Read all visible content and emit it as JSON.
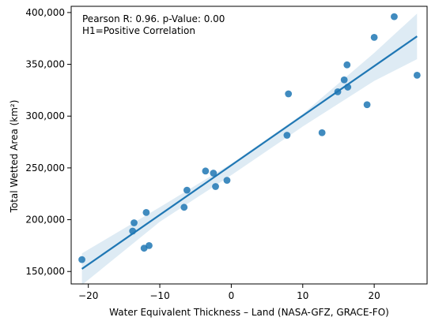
{
  "chart_data": {
    "type": "scatter",
    "xlabel": "Water Equivalent Thickness – Land (NASA-GFZ, GRACE-FO)",
    "ylabel": "Total Wetted Area (km²)",
    "annotation_lines": [
      "Pearson R: 0.96. p-Value: 0.00",
      "H1=Positive Correlation"
    ],
    "xlim": [
      -22.4,
      27.4
    ],
    "ylim": [
      138000,
      406000
    ],
    "x_ticks": [
      -20,
      -10,
      0,
      10,
      20
    ],
    "x_tick_labels": [
      "−20",
      "−10",
      "0",
      "10",
      "20"
    ],
    "y_ticks": [
      150000,
      200000,
      250000,
      300000,
      350000,
      400000
    ],
    "y_tick_labels": [
      "150,000",
      "200,000",
      "250,000",
      "300,000",
      "350,000",
      "400,000"
    ],
    "grid": false,
    "colors": {
      "points": "#1f77b4",
      "line": "#1f77b4",
      "band": "#1f77b4"
    },
    "points": [
      {
        "x": -20.9,
        "y": 161500
      },
      {
        "x": -13.8,
        "y": 189000
      },
      {
        "x": -13.6,
        "y": 197000
      },
      {
        "x": -12.2,
        "y": 172500
      },
      {
        "x": -11.9,
        "y": 207000
      },
      {
        "x": -11.5,
        "y": 175000
      },
      {
        "x": -6.6,
        "y": 212000
      },
      {
        "x": -6.2,
        "y": 228500
      },
      {
        "x": -3.6,
        "y": 247000
      },
      {
        "x": -2.5,
        "y": 245000
      },
      {
        "x": -2.2,
        "y": 232000
      },
      {
        "x": -0.6,
        "y": 238000
      },
      {
        "x": 7.8,
        "y": 281500
      },
      {
        "x": 8.0,
        "y": 321500
      },
      {
        "x": 12.7,
        "y": 284000
      },
      {
        "x": 14.9,
        "y": 323500
      },
      {
        "x": 15.8,
        "y": 335000
      },
      {
        "x": 16.2,
        "y": 349500
      },
      {
        "x": 16.3,
        "y": 328000
      },
      {
        "x": 19.0,
        "y": 311000
      },
      {
        "x": 20.0,
        "y": 376000
      },
      {
        "x": 22.8,
        "y": 396000
      },
      {
        "x": 26.0,
        "y": 339500
      }
    ],
    "regression": {
      "x": [
        -20.9,
        26.0
      ],
      "y": [
        152500,
        377000
      ]
    },
    "confidence_band": [
      {
        "x": -20.9,
        "lower": 137000,
        "upper": 167500
      },
      {
        "x": -10,
        "lower": 198000,
        "upper": 212000
      },
      {
        "x": 0,
        "lower": 243000,
        "upper": 254000
      },
      {
        "x": 10,
        "lower": 290000,
        "upper": 302000
      },
      {
        "x": 20,
        "lower": 334000,
        "upper": 361000
      },
      {
        "x": 26.0,
        "lower": 355000,
        "upper": 399000
      }
    ]
  }
}
